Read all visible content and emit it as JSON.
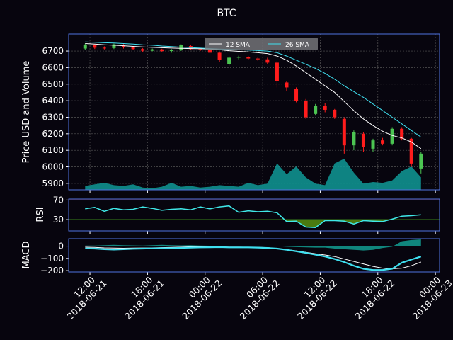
{
  "chart_data": [
    {
      "type": "candlestick",
      "title": "BTC",
      "ylabel": "Price USD and Volume",
      "x": [
        "2018-06-21 11:30",
        "2018-06-21 12:30",
        "2018-06-21 13:30",
        "2018-06-21 14:30",
        "2018-06-21 15:30",
        "2018-06-21 16:30",
        "2018-06-21 17:30",
        "2018-06-21 18:30",
        "2018-06-21 19:30",
        "2018-06-21 20:30",
        "2018-06-21 21:30",
        "2018-06-21 22:30",
        "2018-06-21 23:30",
        "2018-06-22 00:30",
        "2018-06-22 01:30",
        "2018-06-22 02:30",
        "2018-06-22 03:30",
        "2018-06-22 04:30",
        "2018-06-22 05:30",
        "2018-06-22 06:30",
        "2018-06-22 07:30",
        "2018-06-22 08:30",
        "2018-06-22 09:30",
        "2018-06-22 10:30",
        "2018-06-22 11:30",
        "2018-06-22 12:30",
        "2018-06-22 13:30",
        "2018-06-22 14:30",
        "2018-06-22 15:30",
        "2018-06-22 16:30",
        "2018-06-22 17:30",
        "2018-06-22 18:30",
        "2018-06-22 19:30",
        "2018-06-22 20:30",
        "2018-06-22 21:30",
        "2018-06-22 22:30"
      ],
      "open": [
        6715,
        6735,
        6720,
        6718,
        6738,
        6722,
        6712,
        6702,
        6710,
        6700,
        6705,
        6730,
        6712,
        6708,
        6690,
        6620,
        6660,
        6665,
        6655,
        6650,
        6630,
        6510,
        6470,
        6400,
        6320,
        6370,
        6345,
        6290,
        6130,
        6200,
        6110,
        6160,
        6140,
        6230,
        6170,
        5990
      ],
      "high": [
        6745,
        6740,
        6728,
        6745,
        6742,
        6728,
        6718,
        6715,
        6714,
        6712,
        6740,
        6735,
        6718,
        6712,
        6695,
        6668,
        6672,
        6670,
        6662,
        6660,
        6640,
        6520,
        6480,
        6410,
        6380,
        6385,
        6350,
        6300,
        6220,
        6210,
        6170,
        6175,
        6240,
        6240,
        6175,
        6090
      ],
      "low": [
        6705,
        6712,
        6710,
        6712,
        6715,
        6705,
        6695,
        6698,
        6692,
        6690,
        6700,
        6705,
        6700,
        6680,
        6635,
        6612,
        6650,
        6645,
        6640,
        6620,
        6480,
        6460,
        6390,
        6290,
        6310,
        6330,
        6290,
        6080,
        6100,
        6090,
        6090,
        6130,
        6130,
        6160,
        6000,
        5960
      ],
      "close": [
        6735,
        6720,
        6718,
        6740,
        6722,
        6712,
        6702,
        6710,
        6700,
        6705,
        6735,
        6712,
        6708,
        6690,
        6645,
        6660,
        6665,
        6655,
        6650,
        6630,
        6520,
        6480,
        6400,
        6300,
        6370,
        6345,
        6300,
        6130,
        6210,
        6120,
        6160,
        6140,
        6230,
        6170,
        6020,
        6080
      ],
      "up_color": "#4cc552",
      "down_color": "#ff1c1c",
      "series": [
        {
          "name": "12 SMA",
          "color": "#ffffff",
          "values": [
            6745,
            6742,
            6738,
            6735,
            6732,
            6728,
            6725,
            6722,
            6720,
            6718,
            6716,
            6715,
            6714,
            6712,
            6708,
            6702,
            6698,
            6695,
            6690,
            6685,
            6670,
            6645,
            6610,
            6570,
            6530,
            6490,
            6450,
            6395,
            6340,
            6290,
            6250,
            6215,
            6190,
            6175,
            6150,
            6110
          ]
        },
        {
          "name": "26 SMA",
          "color": "#3fe0f0",
          "values": [
            6755,
            6753,
            6750,
            6748,
            6745,
            6742,
            6738,
            6735,
            6730,
            6727,
            6724,
            6721,
            6718,
            6715,
            6712,
            6710,
            6708,
            6706,
            6703,
            6700,
            6690,
            6670,
            6645,
            6620,
            6595,
            6565,
            6530,
            6490,
            6455,
            6420,
            6380,
            6340,
            6300,
            6260,
            6220,
            6180
          ]
        }
      ],
      "volume": {
        "axis": "y2",
        "color": "#0f9a96",
        "values": [
          25,
          35,
          45,
          30,
          25,
          35,
          15,
          10,
          20,
          45,
          20,
          25,
          15,
          20,
          30,
          25,
          20,
          45,
          30,
          40,
          170,
          100,
          150,
          80,
          40,
          30,
          170,
          200,
          110,
          40,
          50,
          45,
          60,
          120,
          150,
          80
        ]
      },
      "y2lim": [
        0,
        1000
      ],
      "xlim": [
        "2018-06-21 09:47",
        "2018-06-23 00:26"
      ],
      "ylim": [
        5861,
        6803
      ],
      "yticks": [
        5900,
        6000,
        6100,
        6200,
        6300,
        6400,
        6500,
        6600,
        6700
      ],
      "grid": true,
      "legend": "upper center"
    },
    {
      "type": "rsi",
      "ylabel": "RSI",
      "color": "#3fe8e8",
      "values": [
        52,
        55,
        47,
        53,
        50,
        51,
        56,
        53,
        49,
        51,
        52,
        50,
        56,
        52,
        56,
        58,
        45,
        48,
        46,
        47,
        44,
        26,
        27,
        15,
        14,
        28,
        28,
        27,
        21,
        28,
        27,
        26,
        31,
        37,
        38,
        40
      ],
      "ylim": [
        7,
        72
      ],
      "yticks": [
        30,
        70
      ],
      "ref_colors": [
        "#4caf20",
        "#d03030"
      ],
      "fill_color": "#4a7a10"
    },
    {
      "type": "macd",
      "ylabel": "MACD",
      "series": [
        {
          "color": "#ffffff",
          "values": [
            -8,
            -10,
            -14,
            -16,
            -17,
            -16,
            -15,
            -14,
            -12,
            -10,
            -8,
            -5,
            -3,
            -3,
            -5,
            -8,
            -8,
            -9,
            -10,
            -12,
            -20,
            -28,
            -38,
            -50,
            -62,
            -72,
            -85,
            -105,
            -125,
            -145,
            -165,
            -180,
            -185,
            -180,
            -160,
            -130
          ]
        },
        {
          "color": "#3fe0f0",
          "values": [
            -18,
            -20,
            -25,
            -28,
            -25,
            -22,
            -20,
            -18,
            -17,
            -16,
            -14,
            -12,
            -10,
            -9,
            -8,
            -10,
            -10,
            -10,
            -12,
            -15,
            -20,
            -30,
            -42,
            -55,
            -70,
            -85,
            -105,
            -130,
            -160,
            -185,
            -195,
            -195,
            -185,
            -135,
            -110,
            -85
          ]
        }
      ],
      "hist": {
        "color": "#12958a",
        "values": [
          5,
          5,
          8,
          10,
          8,
          6,
          5,
          8,
          10,
          8,
          6,
          7,
          4,
          3,
          2,
          2,
          2,
          1,
          2,
          3,
          0,
          -5,
          -8,
          -10,
          -12,
          -12,
          -20,
          -25,
          -30,
          -35,
          -30,
          -15,
          -5,
          40,
          50,
          55
        ]
      },
      "ylim": [
        -211,
        61
      ],
      "yticks": [
        0,
        {
          "value": -100,
          "label": "−100"
        },
        {
          "value": -200,
          "label": "−200"
        }
      ],
      "xticks": [
        {
          "value": "2018-06-21 12:00",
          "label": [
            "12:00",
            "2018-06-21"
          ]
        },
        {
          "value": "2018-06-21 18:00",
          "label": [
            "18:00",
            "2018-06-21"
          ]
        },
        {
          "value": "2018-06-22 00:00",
          "label": [
            "00:00",
            "2018-06-22"
          ]
        },
        {
          "value": "2018-06-22 06:00",
          "label": [
            "06:00",
            "2018-06-22"
          ]
        },
        {
          "value": "2018-06-22 12:00",
          "label": [
            "12:00",
            "2018-06-22"
          ]
        },
        {
          "value": "2018-06-22 18:00",
          "label": [
            "18:00",
            "2018-06-22"
          ]
        },
        {
          "value": "2018-06-23 00:00",
          "label": [
            "00:00",
            "2018-06-23"
          ]
        }
      ]
    }
  ]
}
